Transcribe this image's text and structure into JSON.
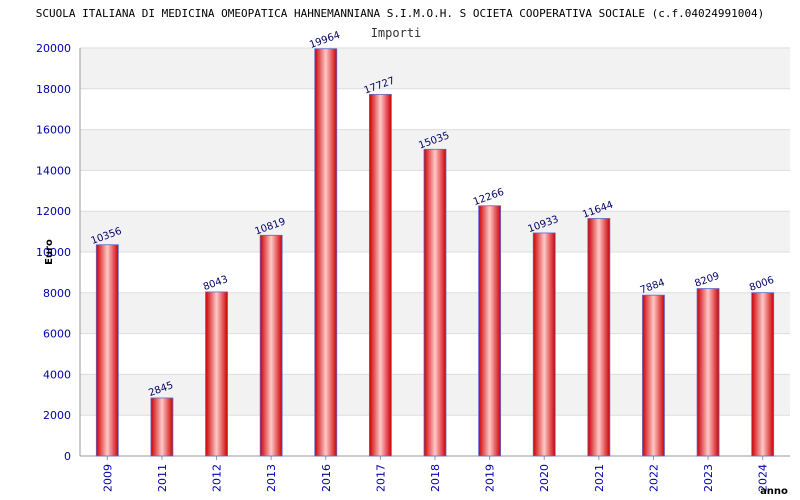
{
  "chart_data": {
    "type": "bar",
    "title": "SCUOLA ITALIANA DI MEDICINA OMEOPATICA HAHNEMANNIANA S.I.M.O.H. S OCIETA COOPERATIVA SOCIALE (c.f.04024991004)",
    "subtitle": "Importi",
    "xlabel": "anno",
    "ylabel": "Euro",
    "categories": [
      "2009",
      "2011",
      "2012",
      "2013",
      "2016",
      "2017",
      "2018",
      "2019",
      "2020",
      "2021",
      "2022",
      "2023",
      "2024"
    ],
    "values": [
      10356,
      2845,
      8043,
      10819,
      19964,
      17727,
      15035,
      12266,
      10933,
      11644,
      7884,
      8209,
      8006
    ],
    "ylim": [
      0,
      20000
    ],
    "yticks": [
      0,
      2000,
      4000,
      6000,
      8000,
      10000,
      12000,
      14000,
      16000,
      18000,
      20000
    ],
    "grid": true,
    "colors": {
      "bar_edge": "#cc0000",
      "bar_center": "#ffc8c8",
      "bar_outline": "#6666cc",
      "band_alt": "#f2f2f2",
      "tick_text": "#0000aa",
      "value_text": "#000066"
    }
  }
}
